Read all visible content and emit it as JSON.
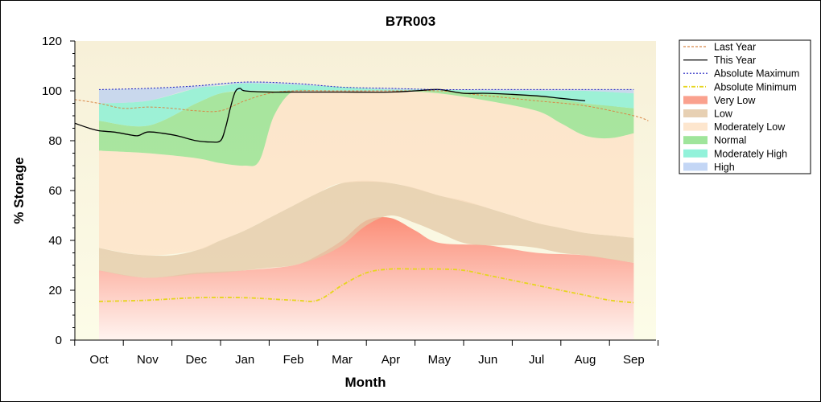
{
  "chart_data": {
    "type": "area",
    "title": "B7R003",
    "xlabel": "Month",
    "ylabel": "% Storage",
    "ylim": [
      0,
      120
    ],
    "yticks": [
      0,
      20,
      40,
      60,
      80,
      100,
      120
    ],
    "categories": [
      "Oct",
      "Nov",
      "Dec",
      "Jan",
      "Feb",
      "Mar",
      "Apr",
      "May",
      "Jun",
      "Jul",
      "Aug",
      "Sep"
    ],
    "grid": false,
    "legend_position": "right",
    "bands": [
      {
        "name": "Very Low",
        "color": "#f9907a",
        "x": [
          0,
          1,
          2,
          3,
          4,
          4.5,
          5,
          5.5,
          6,
          6.5,
          7,
          8,
          9,
          10,
          11
        ],
        "lower": [
          0,
          0,
          0,
          0,
          0,
          0,
          0,
          0,
          0,
          0,
          0,
          0,
          0,
          0,
          0
        ],
        "upper": [
          28,
          25,
          27,
          28,
          30,
          34,
          40,
          48,
          49,
          44,
          39,
          38,
          35,
          34,
          31
        ]
      },
      {
        "name": "Low",
        "color": "#e3c8a6",
        "x": [
          0,
          0.5,
          1,
          1.5,
          2,
          2.5,
          3,
          3.5,
          4,
          4.5,
          5,
          5.5,
          6,
          6.5,
          7,
          7.5,
          8,
          8.5,
          9,
          9.5,
          10,
          10.5,
          11
        ],
        "lower": [
          28,
          26,
          25,
          25.5,
          26.5,
          27,
          28,
          29,
          30,
          33,
          38,
          46,
          50,
          47,
          43,
          39,
          38,
          38,
          37,
          35,
          34,
          32.5,
          31
        ],
        "upper": [
          37,
          35,
          34,
          34,
          36,
          40,
          44,
          49,
          54,
          59,
          63,
          64,
          63,
          61,
          58,
          56,
          53,
          50,
          47,
          45,
          43,
          42,
          41
        ]
      },
      {
        "name": "Moderately Low",
        "color": "#fde2c6",
        "x": [
          0,
          1,
          2,
          2.5,
          3,
          3.3,
          3.6,
          4,
          4.5,
          5,
          6,
          7,
          8,
          9,
          9.5,
          10,
          10.5,
          11
        ],
        "lower": [
          37,
          34,
          36,
          40,
          44,
          47,
          50,
          54,
          59,
          63,
          63,
          58,
          53,
          47,
          45,
          43,
          42,
          41
        ],
        "upper": [
          76,
          75,
          73,
          71,
          70,
          72,
          90,
          100,
          100,
          100,
          100,
          99,
          96,
          92,
          87,
          82,
          81,
          83
        ]
      },
      {
        "name": "Normal",
        "color": "#8ee08a",
        "x": [
          0,
          1,
          2,
          2.5,
          3,
          3.3,
          3.6,
          4,
          4.5,
          5,
          6,
          7,
          8,
          9,
          9.5,
          10,
          10.5,
          11
        ],
        "lower": [
          76,
          75,
          73,
          71,
          70,
          72,
          90,
          100,
          100,
          100,
          100,
          99,
          96,
          92,
          87,
          82,
          81,
          83
        ],
        "upper": [
          88,
          86,
          95,
          99,
          100,
          100,
          100,
          100,
          100,
          100,
          100,
          100,
          99,
          98,
          97,
          95,
          94,
          93
        ]
      },
      {
        "name": "Moderately High",
        "color": "#7ff0d4",
        "x": [
          0,
          1,
          2,
          2.5,
          3,
          4,
          5,
          6,
          7,
          8,
          9,
          10,
          11
        ],
        "lower": [
          88,
          86,
          95,
          99,
          100,
          100,
          100,
          100,
          100,
          99,
          98,
          95,
          93
        ],
        "upper": [
          95,
          96,
          101,
          102,
          103,
          102.5,
          101.5,
          100.5,
          100.5,
          100,
          100,
          100,
          99
        ]
      },
      {
        "name": "High",
        "color": "#b9cff3",
        "x": [
          0,
          1,
          2,
          3,
          4,
          5,
          6,
          7,
          8,
          9,
          10,
          11
        ],
        "lower": [
          95,
          96,
          101,
          103,
          102.5,
          101.5,
          100.5,
          100.5,
          100,
          100,
          100,
          99
        ],
        "upper": [
          100.5,
          101,
          102,
          103.5,
          103,
          101.5,
          101,
          100.5,
          100.5,
          100.5,
          100.5,
          100.5
        ]
      }
    ],
    "series": [
      {
        "name": "Last Year",
        "color": "#d88848",
        "style": "dashed",
        "x": [
          -0.5,
          0,
          0.5,
          1,
          1.5,
          2,
          2.5,
          3,
          3.5,
          4,
          5,
          6,
          7,
          7.5,
          8,
          9,
          10,
          11,
          11.3
        ],
        "values": [
          96.5,
          95,
          93,
          93.5,
          93,
          92,
          92,
          96,
          99,
          100,
          100,
          100,
          100,
          99,
          98,
          96,
          94,
          90,
          88
        ]
      },
      {
        "name": "This Year",
        "color": "#000000",
        "style": "solid",
        "x": [
          -0.5,
          -0.2,
          0,
          0.3,
          0.6,
          0.8,
          1,
          1.3,
          1.6,
          2,
          2.3,
          2.5,
          2.6,
          2.7,
          2.8,
          2.9,
          3,
          3.5,
          4,
          4.5,
          5,
          6,
          6.5,
          7,
          7.5,
          8,
          9,
          9.5,
          10
        ],
        "values": [
          87,
          85,
          84,
          83.5,
          82.5,
          82,
          83.5,
          83,
          82,
          80,
          79.5,
          80,
          85,
          93,
          99.5,
          101,
          100,
          99.5,
          99.5,
          99.5,
          99.5,
          99.5,
          100,
          100.5,
          99,
          99,
          98,
          97,
          96
        ]
      },
      {
        "name": "Absolute Maximum",
        "color": "#2020c0",
        "style": "dotted",
        "x": [
          0,
          1,
          2,
          3,
          4,
          5,
          6,
          7,
          8,
          9,
          10,
          11
        ],
        "values": [
          100.5,
          101,
          102,
          103.5,
          103,
          101.5,
          101,
          100.5,
          100.5,
          100.5,
          100.5,
          100.5
        ]
      },
      {
        "name": "Absolute Minimum",
        "color": "#e6d51e",
        "style": "dashdot",
        "x": [
          0,
          1,
          2,
          3,
          4,
          4.5,
          5,
          5.5,
          6,
          6.5,
          7,
          7.5,
          8,
          8.5,
          9,
          9.5,
          10,
          10.5,
          11
        ],
        "values": [
          15.5,
          16,
          17,
          17,
          16,
          16,
          22,
          27,
          28.5,
          28.5,
          28.5,
          28,
          26,
          24,
          22,
          20,
          18,
          16,
          15
        ]
      }
    ]
  }
}
